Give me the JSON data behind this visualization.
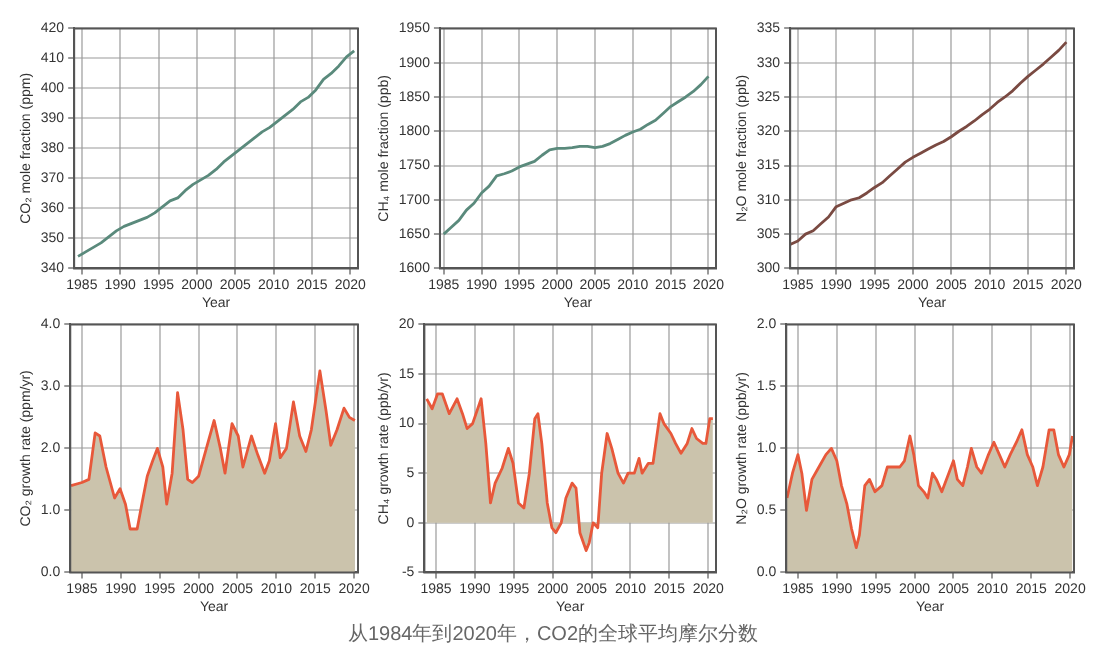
{
  "chart_data": [
    {
      "type": "line",
      "xlabel": "Year",
      "ylabel": "CO₂ mole fraction (ppm)",
      "xlim": [
        1984,
        2021
      ],
      "xticks": [
        1985,
        1990,
        1995,
        2000,
        2005,
        2010,
        2015,
        2020
      ],
      "ylim": [
        340,
        420
      ],
      "yticks": [
        340,
        350,
        360,
        370,
        380,
        390,
        400,
        410,
        420
      ],
      "grid": true,
      "line_style": "solid",
      "marker": "none",
      "series": [
        {
          "color": "#5a8a7c",
          "x": [
            1984.5,
            1985.5,
            1986.5,
            1987.5,
            1988.5,
            1989.5,
            1990.5,
            1991.5,
            1992.5,
            1993.5,
            1994.5,
            1995.5,
            1996.5,
            1997.5,
            1998.5,
            1999.5,
            2000.5,
            2001.5,
            2002.5,
            2003.5,
            2004.5,
            2005.5,
            2006.5,
            2007.5,
            2008.5,
            2009.5,
            2010.5,
            2011.5,
            2012.5,
            2013.5,
            2014.5,
            2015.5,
            2016.5,
            2017.5,
            2018.5,
            2019.5,
            2020.5
          ],
          "values": [
            344,
            345.5,
            347,
            348.5,
            350.5,
            352.5,
            354,
            355,
            356,
            357,
            358.5,
            360.5,
            362.5,
            363.5,
            366,
            368,
            369.5,
            371,
            373,
            375.5,
            377.5,
            379.5,
            381.5,
            383.5,
            385.5,
            387,
            389,
            391,
            393,
            395.5,
            397,
            399.5,
            403,
            405,
            407.5,
            410.5,
            412.5
          ]
        }
      ]
    },
    {
      "type": "line",
      "xlabel": "Year",
      "ylabel": "CH₄ mole fraction (ppb)",
      "xlim": [
        1984.5,
        2021
      ],
      "xticks": [
        1985,
        1990,
        1995,
        2000,
        2005,
        2010,
        2015,
        2020
      ],
      "ylim": [
        1600,
        1950
      ],
      "yticks": [
        1600,
        1650,
        1700,
        1750,
        1800,
        1850,
        1900,
        1950
      ],
      "grid": true,
      "line_style": "solid",
      "marker": "none",
      "series": [
        {
          "color": "#5a8a7c",
          "x": [
            1985,
            1986,
            1987,
            1988,
            1989,
            1990,
            1991,
            1992,
            1993,
            1994,
            1995,
            1996,
            1997,
            1998,
            1999,
            2000,
            2001,
            2002,
            2003,
            2004,
            2005,
            2006,
            2007,
            2008,
            2009,
            2010,
            2011,
            2012,
            2013,
            2014,
            2015,
            2016,
            2017,
            2018,
            2019,
            2020
          ],
          "values": [
            1650,
            1660,
            1670,
            1685,
            1695,
            1710,
            1720,
            1735,
            1738,
            1742,
            1748,
            1752,
            1756,
            1765,
            1773,
            1775,
            1775,
            1776,
            1778,
            1778,
            1776,
            1778,
            1782,
            1788,
            1794,
            1799,
            1803,
            1810,
            1816,
            1826,
            1836,
            1843,
            1850,
            1858,
            1868,
            1880
          ]
        }
      ]
    },
    {
      "type": "line",
      "xlabel": "Year",
      "ylabel": "N₂O mole fraction (ppb)",
      "xlim": [
        1984,
        2021
      ],
      "xticks": [
        1985,
        1990,
        1995,
        2000,
        2005,
        2010,
        2015,
        2020
      ],
      "ylim": [
        300,
        335
      ],
      "yticks": [
        300,
        305,
        310,
        315,
        320,
        325,
        330,
        335
      ],
      "grid": true,
      "line_style": "solid",
      "marker": "none",
      "series": [
        {
          "color": "#7a4a42",
          "x": [
            1984,
            1985,
            1986,
            1987,
            1988,
            1989,
            1990,
            1991,
            1992,
            1993,
            1994,
            1995,
            1996,
            1997,
            1998,
            1999,
            2000,
            2001,
            2002,
            2003,
            2004,
            2005,
            2006,
            2007,
            2008,
            2009,
            2010,
            2011,
            2012,
            2013,
            2014,
            2015,
            2016,
            2017,
            2018,
            2019,
            2020
          ],
          "values": [
            303.5,
            304,
            305,
            305.5,
            306.5,
            307.5,
            309,
            309.5,
            310,
            310.3,
            311,
            311.8,
            312.5,
            313.5,
            314.5,
            315.5,
            316.2,
            316.8,
            317.4,
            318,
            318.5,
            319.2,
            320,
            320.7,
            321.5,
            322.4,
            323.2,
            324.2,
            325,
            325.9,
            327,
            328,
            328.9,
            329.8,
            330.8,
            331.8,
            333
          ]
        }
      ]
    },
    {
      "type": "area",
      "xlabel": "Year",
      "ylabel": "CO₂ growth rate (ppm/yr)",
      "xlim": [
        1983.5,
        2020.5
      ],
      "xticks": [
        1985,
        1990,
        1995,
        2000,
        2005,
        2010,
        2015,
        2020
      ],
      "ylim": [
        0,
        4
      ],
      "yticks": [
        {
          "value": 0,
          "label": "0.0"
        },
        {
          "value": 1,
          "label": "1.0"
        },
        {
          "value": 2,
          "label": "2.0"
        },
        {
          "value": 3,
          "label": "3.0"
        },
        {
          "value": 4,
          "label": "4.0"
        }
      ],
      "grid": true,
      "line_style": "solid",
      "marker": "none",
      "series": [
        {
          "color": "#e8583a",
          "x": [
            1983.6,
            1985,
            1985.9,
            1986.7,
            1987.3,
            1988.1,
            1989.2,
            1989.9,
            1990.6,
            1991.2,
            1992.1,
            1992.7,
            1993.4,
            1994.1,
            1994.7,
            1995.4,
            1995.9,
            1996.6,
            1997.3,
            1998,
            1998.6,
            1999.2,
            2000,
            2001,
            2002,
            2002.8,
            2003.4,
            2004.3,
            2005.1,
            2005.7,
            2006.8,
            2007.6,
            2008.5,
            2009.1,
            2009.9,
            2010.5,
            2011.3,
            2012.2,
            2013,
            2013.8,
            2014.5,
            2015.6,
            2016.4,
            2017,
            2017.8,
            2018.7,
            2019.4,
            2020.1
          ],
          "values": [
            1.4,
            1.45,
            1.5,
            2.25,
            2.2,
            1.7,
            1.2,
            1.35,
            1.1,
            0.7,
            0.7,
            1.1,
            1.55,
            1.8,
            2,
            1.7,
            1.1,
            1.6,
            2.9,
            2.3,
            1.5,
            1.45,
            1.55,
            2,
            2.45,
            2,
            1.6,
            2.4,
            2.2,
            1.7,
            2.2,
            1.9,
            1.6,
            1.8,
            2.4,
            1.85,
            2,
            2.75,
            2.2,
            1.95,
            2.3,
            3.25,
            2.6,
            2.05,
            2.3,
            2.65,
            2.5,
            2.45
          ]
        }
      ]
    },
    {
      "type": "area",
      "xlabel": "Year",
      "ylabel": "CH₄ growth rate (ppb/yr)",
      "xlim": [
        1983.5,
        2021
      ],
      "xticks": [
        1985,
        1990,
        1995,
        2000,
        2005,
        2010,
        2015,
        2020
      ],
      "ylim": [
        -5,
        20
      ],
      "yticks": [
        -5,
        0,
        5,
        10,
        15,
        20
      ],
      "grid": true,
      "line_style": "solid",
      "marker": "none",
      "series": [
        {
          "color": "#e8583a",
          "x": [
            1983.8,
            1984.5,
            1985.2,
            1985.8,
            1986.7,
            1987.7,
            1988.4,
            1989,
            1989.7,
            1990.8,
            1991.4,
            1992,
            1992.6,
            1993.5,
            1994.3,
            1994.9,
            1995.6,
            1996.3,
            1997,
            1997.7,
            1998.1,
            1998.6,
            1999.3,
            1999.9,
            2000.4,
            2001.1,
            2001.7,
            2002.5,
            2003,
            2003.5,
            2004.3,
            2004.7,
            2005.2,
            2005.8,
            2006.3,
            2007,
            2007.6,
            2008.4,
            2009.1,
            2009.7,
            2010.5,
            2011.1,
            2011.5,
            2012.3,
            2012.9,
            2013.8,
            2014.3,
            2015.2,
            2015.8,
            2016.5,
            2017.3,
            2017.9,
            2018.5,
            2019.3,
            2019.7,
            2020.2,
            2020.6
          ],
          "values": [
            12.5,
            11.5,
            13,
            13,
            11,
            12.5,
            11,
            9.5,
            10,
            12.5,
            8,
            2,
            4,
            5.5,
            7.5,
            6,
            2,
            1.5,
            5,
            10.5,
            11,
            8,
            2,
            -0.5,
            -1,
            0,
            2.5,
            4,
            3.5,
            -1,
            -2.8,
            -2,
            0,
            -0.5,
            5,
            9,
            7.5,
            5,
            4,
            5,
            5,
            6.5,
            5,
            6,
            6,
            11,
            10,
            9,
            8,
            7,
            8,
            9.5,
            8.5,
            8,
            8,
            10.5,
            10.5
          ]
        }
      ]
    },
    {
      "type": "area",
      "xlabel": "Year",
      "ylabel": "N₂O growth rate (ppb/yr)",
      "xlim": [
        1983.5,
        2020.5
      ],
      "xticks": [
        1985,
        1990,
        1995,
        2000,
        2005,
        2010,
        2015,
        2020
      ],
      "ylim": [
        0,
        2
      ],
      "yticks": [
        {
          "value": 0,
          "label": "0.0"
        },
        {
          "value": 0.5,
          "label": "0.5"
        },
        {
          "value": 1,
          "label": "1.0"
        },
        {
          "value": 1.5,
          "label": "1.5"
        },
        {
          "value": 2,
          "label": "2.0"
        }
      ],
      "grid": true,
      "line_style": "solid",
      "marker": "none",
      "series": [
        {
          "color": "#e8583a",
          "x": [
            1983.6,
            1984.3,
            1985,
            1985.5,
            1986.1,
            1986.8,
            1987.7,
            1988.6,
            1989.3,
            1990,
            1990.6,
            1991.3,
            1991.9,
            1992.5,
            1992.9,
            1993.6,
            1994.2,
            1994.9,
            1995.8,
            1996.5,
            1997.2,
            1998.1,
            1998.7,
            1999.4,
            1999.9,
            2000.5,
            2001.2,
            2001.7,
            2002.3,
            2002.8,
            2003.5,
            2004.4,
            2005,
            2005.5,
            2006.2,
            2006.8,
            2007.3,
            2008,
            2008.6,
            2009.5,
            2010.2,
            2010.9,
            2011.6,
            2012.3,
            2013.1,
            2013.8,
            2014.5,
            2015.2,
            2015.8,
            2016.5,
            2017.3,
            2017.9,
            2018.5,
            2019.2,
            2019.9,
            2020.3
          ],
          "values": [
            0.6,
            0.8,
            0.95,
            0.8,
            0.5,
            0.75,
            0.85,
            0.95,
            1,
            0.9,
            0.7,
            0.55,
            0.35,
            0.2,
            0.3,
            0.7,
            0.75,
            0.65,
            0.7,
            0.85,
            0.85,
            0.85,
            0.9,
            1.1,
            0.95,
            0.7,
            0.65,
            0.6,
            0.8,
            0.75,
            0.65,
            0.8,
            0.9,
            0.75,
            0.7,
            0.85,
            1,
            0.85,
            0.8,
            0.95,
            1.05,
            0.95,
            0.85,
            0.95,
            1.05,
            1.15,
            0.95,
            0.85,
            0.7,
            0.85,
            1.15,
            1.15,
            0.95,
            0.85,
            0.95,
            1.1
          ]
        }
      ],
      "annotations": [
        "从1984年到2020年，CO2的全球平均摩尔分数"
      ]
    }
  ]
}
